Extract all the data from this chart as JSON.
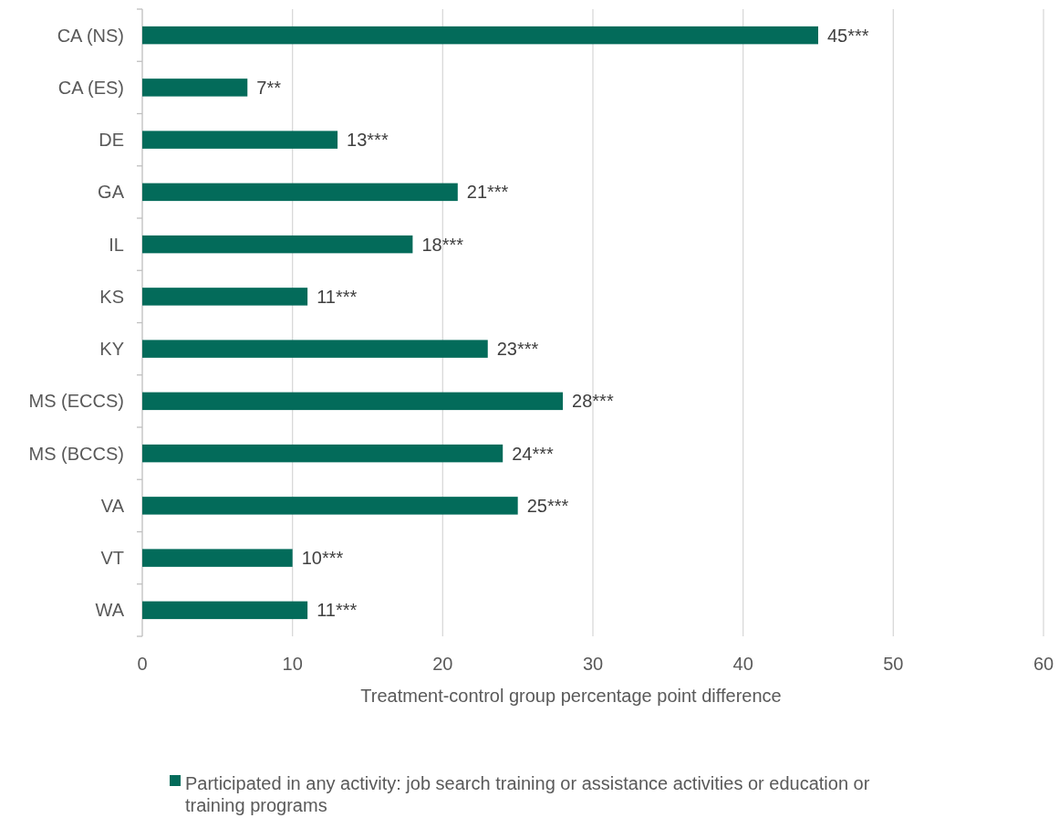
{
  "chart_data": {
    "type": "bar",
    "orientation": "horizontal",
    "xlabel": "Treatment-control group percentage point difference",
    "categories": [
      "CA (NS)",
      "CA (ES)",
      "DE",
      "GA",
      "IL",
      "KS",
      "KY",
      "MS (ECCS)",
      "MS (BCCS)",
      "VA",
      "VT",
      "WA"
    ],
    "series": [
      {
        "name": "Participated in any activity:  job search training or assistance activities or education or training programs",
        "color": "#036b5a",
        "values": [
          45,
          7,
          13,
          21,
          18,
          11,
          23,
          28,
          24,
          25,
          10,
          11
        ],
        "value_labels": [
          "45***",
          "7**",
          "13***",
          "21***",
          "18***",
          "11***",
          "23***",
          "28***",
          "24***",
          "25***",
          "10***",
          "11***"
        ]
      }
    ],
    "xlim": [
      0,
      60
    ],
    "xticks": [
      0,
      10,
      20,
      30,
      40,
      50,
      60
    ],
    "grid": "x",
    "legend": "bottom"
  }
}
